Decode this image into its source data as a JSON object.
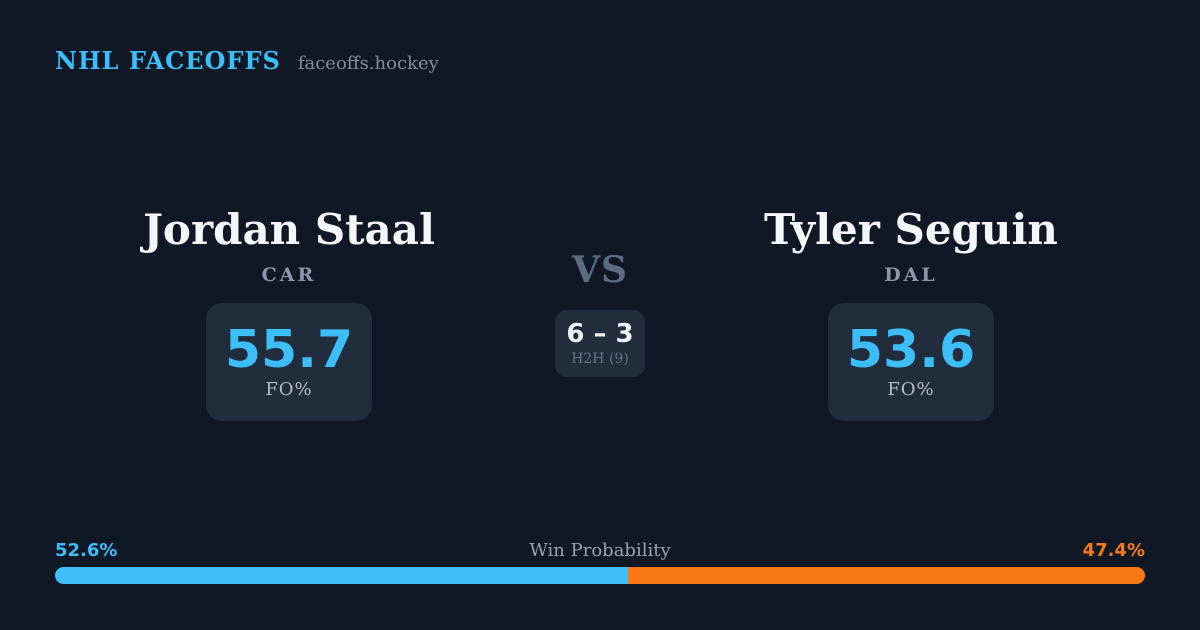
{
  "brand": {
    "title": "NHL FACEOFFS",
    "domain": "faceoffs.hockey"
  },
  "players": {
    "left": {
      "name": "Jordan Staal",
      "team": "CAR",
      "stat": {
        "value": "55.7",
        "label": "FO%"
      }
    },
    "right": {
      "name": "Tyler Seguin",
      "team": "DAL",
      "stat": {
        "value": "53.6",
        "label": "FO%"
      }
    }
  },
  "matchup": {
    "vs_label": "VS",
    "h2h": {
      "score": "6 – 3",
      "label": "H2H (9)"
    }
  },
  "win_probability": {
    "title": "Win Probability",
    "left": {
      "pct_label": "52.6%",
      "value": 52.6
    },
    "right": {
      "pct_label": "47.4%",
      "value": 47.4
    }
  },
  "colors": {
    "background": "#101826",
    "card": "#212c3c",
    "accent_blue": "#3cbef8",
    "accent_orange": "#f87816",
    "text_primary": "#f4f6f9",
    "text_muted": "#8d98aa"
  }
}
